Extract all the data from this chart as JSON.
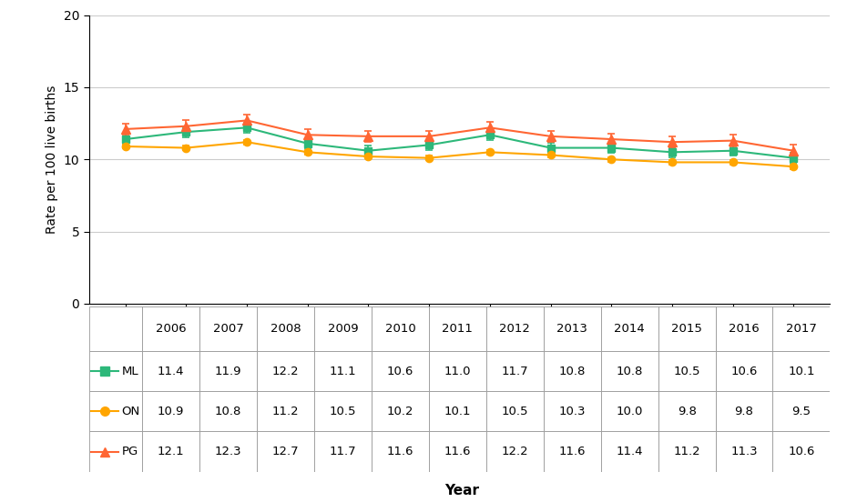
{
  "years": [
    2006,
    2007,
    2008,
    2009,
    2010,
    2011,
    2012,
    2013,
    2014,
    2015,
    2016,
    2017
  ],
  "ML": [
    11.4,
    11.9,
    12.2,
    11.1,
    10.6,
    11.0,
    11.7,
    10.8,
    10.8,
    10.5,
    10.6,
    10.1
  ],
  "ON": [
    10.9,
    10.8,
    11.2,
    10.5,
    10.2,
    10.1,
    10.5,
    10.3,
    10.0,
    9.8,
    9.8,
    9.5
  ],
  "PG": [
    12.1,
    12.3,
    12.7,
    11.7,
    11.6,
    11.6,
    12.2,
    11.6,
    11.4,
    11.2,
    11.3,
    10.6
  ],
  "ML_err": [
    0.35,
    0.35,
    0.35,
    0.35,
    0.35,
    0.35,
    0.35,
    0.35,
    0.35,
    0.35,
    0.35,
    0.35
  ],
  "ON_err": [
    0.15,
    0.15,
    0.15,
    0.15,
    0.15,
    0.15,
    0.15,
    0.15,
    0.15,
    0.15,
    0.15,
    0.15
  ],
  "PG_err": [
    0.4,
    0.4,
    0.4,
    0.4,
    0.4,
    0.4,
    0.4,
    0.4,
    0.4,
    0.4,
    0.4,
    0.4
  ],
  "ML_color": "#2DB87A",
  "ON_color": "#FFA500",
  "PG_color": "#FF6633",
  "ylabel": "Rate per 100 live births",
  "xlabel": "Year",
  "ylim": [
    0,
    20
  ],
  "yticks": [
    0,
    5,
    10,
    15,
    20
  ],
  "bg_color": "#ffffff",
  "grid_color": "#cccccc",
  "table_header": [
    "",
    "2006",
    "2007",
    "2008",
    "2009",
    "2010",
    "2011",
    "2012",
    "2013",
    "2014",
    "2015",
    "2016",
    "2017"
  ],
  "table_ML": [
    "ML",
    "11.4",
    "11.9",
    "12.2",
    "11.1",
    "10.6",
    "11.0",
    "11.7",
    "10.8",
    "10.8",
    "10.5",
    "10.6",
    "10.1"
  ],
  "table_ON": [
    "ON",
    "10.9",
    "10.8",
    "11.2",
    "10.5",
    "10.2",
    "10.1",
    "10.5",
    "10.3",
    "10.0",
    "9.8",
    "9.8",
    "9.5"
  ],
  "table_PG": [
    "PG",
    "12.1",
    "12.3",
    "12.7",
    "11.7",
    "11.6",
    "11.6",
    "12.2",
    "11.6",
    "11.4",
    "11.2",
    "11.3",
    "10.6"
  ]
}
